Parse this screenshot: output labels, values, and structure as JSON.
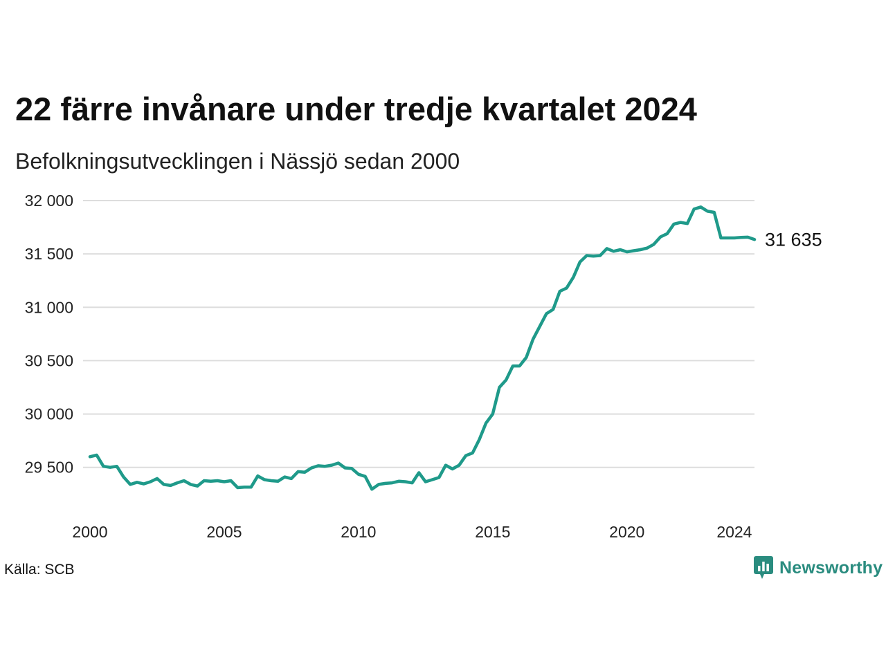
{
  "header": {
    "title": "22 färre invånare under tredje kvartalet 2024",
    "subtitle": "Befolkningsutvecklingen i Nässjö sedan 2000"
  },
  "footer": {
    "source": "Källa: SCB",
    "brand": "Newsworthy",
    "brand_icon": "bar-chart-speech-bubble-icon"
  },
  "colors": {
    "line": "#1f9a8a",
    "grid": "#dddddd",
    "brand": "#2a8c7f"
  },
  "chart_data": {
    "type": "line",
    "x_ticks": [
      "2000",
      "2005",
      "2010",
      "2015",
      "2020",
      "2024"
    ],
    "y_ticks": [
      "29 500",
      "30 000",
      "30 500",
      "31 000",
      "31 500",
      "32 000"
    ],
    "y_tick_values": [
      29500,
      30000,
      30500,
      31000,
      31500,
      32000
    ],
    "xlim": [
      2000,
      2024.75
    ],
    "ylim": [
      29200,
      32000
    ],
    "grid": true,
    "end_label": "31 635",
    "series": [
      {
        "x": [
          2000.0,
          2000.25,
          2000.5,
          2000.75,
          2001.0,
          2001.25,
          2001.5,
          2001.75,
          2002.0,
          2002.25,
          2002.5,
          2002.75,
          2003.0,
          2003.25,
          2003.5,
          2003.75,
          2004.0,
          2004.25,
          2004.5,
          2004.75,
          2005.0,
          2005.25,
          2005.5,
          2005.75,
          2006.0,
          2006.25,
          2006.5,
          2006.75,
          2007.0,
          2007.25,
          2007.5,
          2007.75,
          2008.0,
          2008.25,
          2008.5,
          2008.75,
          2009.0,
          2009.25,
          2009.5,
          2009.75,
          2010.0,
          2010.25,
          2010.5,
          2010.75,
          2011.0,
          2011.25,
          2011.5,
          2011.75,
          2012.0,
          2012.25,
          2012.5,
          2012.75,
          2013.0,
          2013.25,
          2013.5,
          2013.75,
          2014.0,
          2014.25,
          2014.5,
          2014.75,
          2015.0,
          2015.25,
          2015.5,
          2015.75,
          2016.0,
          2016.25,
          2016.5,
          2016.75,
          2017.0,
          2017.25,
          2017.5,
          2017.75,
          2018.0,
          2018.25,
          2018.5,
          2018.75,
          2019.0,
          2019.25,
          2019.5,
          2019.75,
          2020.0,
          2020.25,
          2020.5,
          2020.75,
          2021.0,
          2021.25,
          2021.5,
          2021.75,
          2022.0,
          2022.25,
          2022.5,
          2022.75,
          2023.0,
          2023.25,
          2023.5,
          2023.75,
          2024.0,
          2024.25,
          2024.5,
          2024.75
        ],
        "y": [
          29600,
          29615,
          29510,
          29500,
          29510,
          29410,
          29340,
          29360,
          29345,
          29365,
          29395,
          29340,
          29330,
          29355,
          29375,
          29340,
          29325,
          29375,
          29370,
          29375,
          29365,
          29375,
          29310,
          29315,
          29315,
          29420,
          29385,
          29375,
          29370,
          29410,
          29395,
          29460,
          29455,
          29495,
          29515,
          29510,
          29520,
          29540,
          29495,
          29490,
          29435,
          29415,
          29295,
          29340,
          29350,
          29355,
          29370,
          29365,
          29355,
          29450,
          29365,
          29385,
          29405,
          29520,
          29485,
          29520,
          29610,
          29635,
          29760,
          29915,
          30000,
          30250,
          30320,
          30450,
          30450,
          30530,
          30700,
          30820,
          30940,
          30980,
          31150,
          31180,
          31280,
          31425,
          31485,
          31480,
          31485,
          31550,
          31525,
          31540,
          31520,
          31530,
          31540,
          31555,
          31590,
          31660,
          31690,
          31780,
          31795,
          31785,
          31920,
          31940,
          31900,
          31890,
          31650,
          31650,
          31650,
          31655,
          31657,
          31635
        ]
      }
    ]
  }
}
